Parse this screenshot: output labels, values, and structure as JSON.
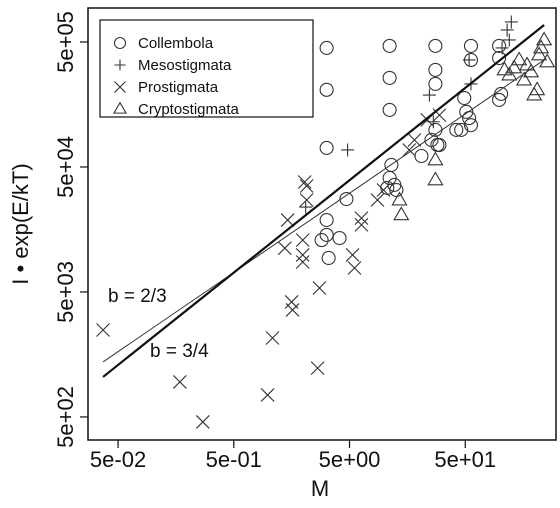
{
  "chart_data": {
    "type": "scatter",
    "x_label": "M",
    "y_label": "I • exp(E/kT)",
    "log_x": true,
    "log_y": true,
    "xlim": [
      0.0275,
      304
    ],
    "ylim": [
      327,
      935000
    ],
    "xticks": [
      {
        "value": 0.05,
        "label": "5e-02"
      },
      {
        "value": 0.5,
        "label": "5e-01"
      },
      {
        "value": 5,
        "label": "5e+00"
      },
      {
        "value": 50,
        "label": "5e+01"
      }
    ],
    "yticks": [
      {
        "value": 500,
        "label": "5e+02"
      },
      {
        "value": 5000,
        "label": "5e+03"
      },
      {
        "value": 50000,
        "label": "5e+04"
      },
      {
        "value": 500000,
        "label": "5e+05"
      }
    ],
    "legend_position": "upper left",
    "series": [
      {
        "name": "Collembola",
        "marker": "circle",
        "color": "#333333",
        "x": [
          3.17,
          3.17,
          3.17,
          3.17,
          3.17,
          2.87,
          3.3,
          4.1,
          4.7,
          11.1,
          11.1,
          11.1,
          11.5,
          11.1,
          10.6,
          12.2,
          12.7,
          20.9,
          27.6,
          27.6,
          27.6,
          27.6,
          25.5,
          28.7,
          29.9,
          49,
          51,
          56,
          56,
          54,
          98,
          98,
          102,
          98,
          41.8,
          46.1,
          56
        ],
        "values": [
          448000,
          207000,
          71000,
          18800,
          14300,
          13000,
          9350,
          13500,
          27700,
          465000,
          258000,
          143000,
          51900,
          40800,
          34000,
          35900,
          32700,
          61200,
          465000,
          299000,
          231000,
          98900,
          82200,
          75000,
          75000,
          178000,
          138000,
          465000,
          359000,
          123000,
          465000,
          372000,
          192000,
          172000,
          98900,
          98900,
          108000
        ]
      },
      {
        "name": "Mesostigmata",
        "marker": "plus",
        "color": "#333333",
        "x": [
          2.09,
          4.81,
          24.5,
          26.5,
          56,
          54,
          115,
          125,
          120,
          104
        ],
        "values": [
          23900,
          68400,
          188000,
          115000,
          231000,
          359000,
          624000,
          723000,
          519000,
          448000
        ]
      },
      {
        "name": "Prostigmata",
        "marker": "cross",
        "color": "#333333",
        "x": [
          0.0371,
          0.171,
          0.27,
          0.98,
          1.08,
          1.38,
          1.46,
          2.13,
          2.05,
          2.13,
          1.58,
          1.61,
          2.75,
          2.65,
          1.97,
          1.97,
          1.97,
          5.31,
          5.52,
          6.34,
          6.34,
          8.71,
          9.82,
          18.2,
          16.4,
          23.5,
          29.9
        ],
        "values": [
          2480,
          953,
          456,
          750,
          2140,
          11200,
          18800,
          35200,
          37900,
          27200,
          4160,
          3590,
          5380,
          1230,
          9890,
          8690,
          13000,
          9890,
          7780,
          19500,
          17200,
          27200,
          32700,
          82200,
          68400,
          119000,
          130000
        ]
      },
      {
        "name": "Cryptostigmata",
        "marker": "triangle",
        "color": "#333333",
        "x": [
          13.5,
          14.0,
          27.6,
          27.6,
          109,
          120,
          132,
          146,
          161,
          171,
          185,
          209,
          217,
          226,
          197,
          240,
          255
        ],
        "values": [
          27200,
          20700,
          56900,
          39400,
          299000,
          272000,
          310000,
          359000,
          248000,
          327000,
          288000,
          207000,
          394000,
          448000,
          188000,
          519000,
          346000
        ]
      }
    ],
    "fit_lines": [
      {
        "label": "b = 2/3",
        "x": [
          0.0371,
          240
        ],
        "values": [
          1377,
          359000
        ],
        "color": "#333333"
      },
      {
        "label": "b = 3/4",
        "x": [
          0.0371,
          240
        ],
        "values": [
          1045,
          684000
        ],
        "color": "#111111"
      }
    ]
  }
}
